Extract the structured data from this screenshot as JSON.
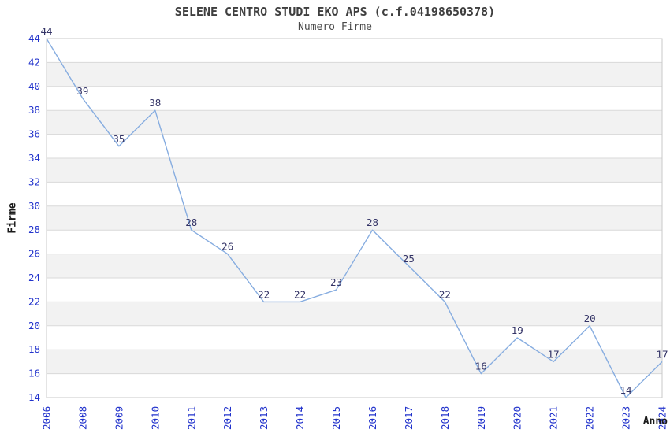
{
  "chart_data": {
    "type": "line",
    "title": "SELENE CENTRO STUDI EKO APS (c.f.04198650378)",
    "subtitle": "Numero Firme",
    "xlabel": "Anno",
    "ylabel": "Firme",
    "x": [
      "2006",
      "2008",
      "2009",
      "2010",
      "2011",
      "2012",
      "2013",
      "2014",
      "2015",
      "2016",
      "2017",
      "2018",
      "2019",
      "2020",
      "2021",
      "2022",
      "2023",
      "2024"
    ],
    "values": [
      44,
      39,
      35,
      38,
      28,
      26,
      22,
      22,
      23,
      28,
      25,
      22,
      16,
      19,
      17,
      20,
      14,
      17
    ],
    "ylim": [
      14,
      44
    ],
    "ytick_step": 2,
    "yticks": [
      14,
      16,
      18,
      20,
      22,
      24,
      26,
      28,
      30,
      32,
      34,
      36,
      38,
      40,
      42,
      44
    ],
    "grid": "horizontal-bands-alternating",
    "legend": "none",
    "point_labels_visible": true,
    "x_tick_rotation_degrees": 90,
    "colors": {
      "line": "#87ade0",
      "tick_labels": "#2233cc",
      "point_labels": "#333366",
      "band_gray": "#f2f2f2",
      "band_white": "#ffffff",
      "gridline": "#d9d9d9",
      "plot_border": "#c9c9c9",
      "title_text": "#3f3f3f",
      "axis_title_text": "#1a1a1a",
      "background": "#ffffff"
    }
  }
}
